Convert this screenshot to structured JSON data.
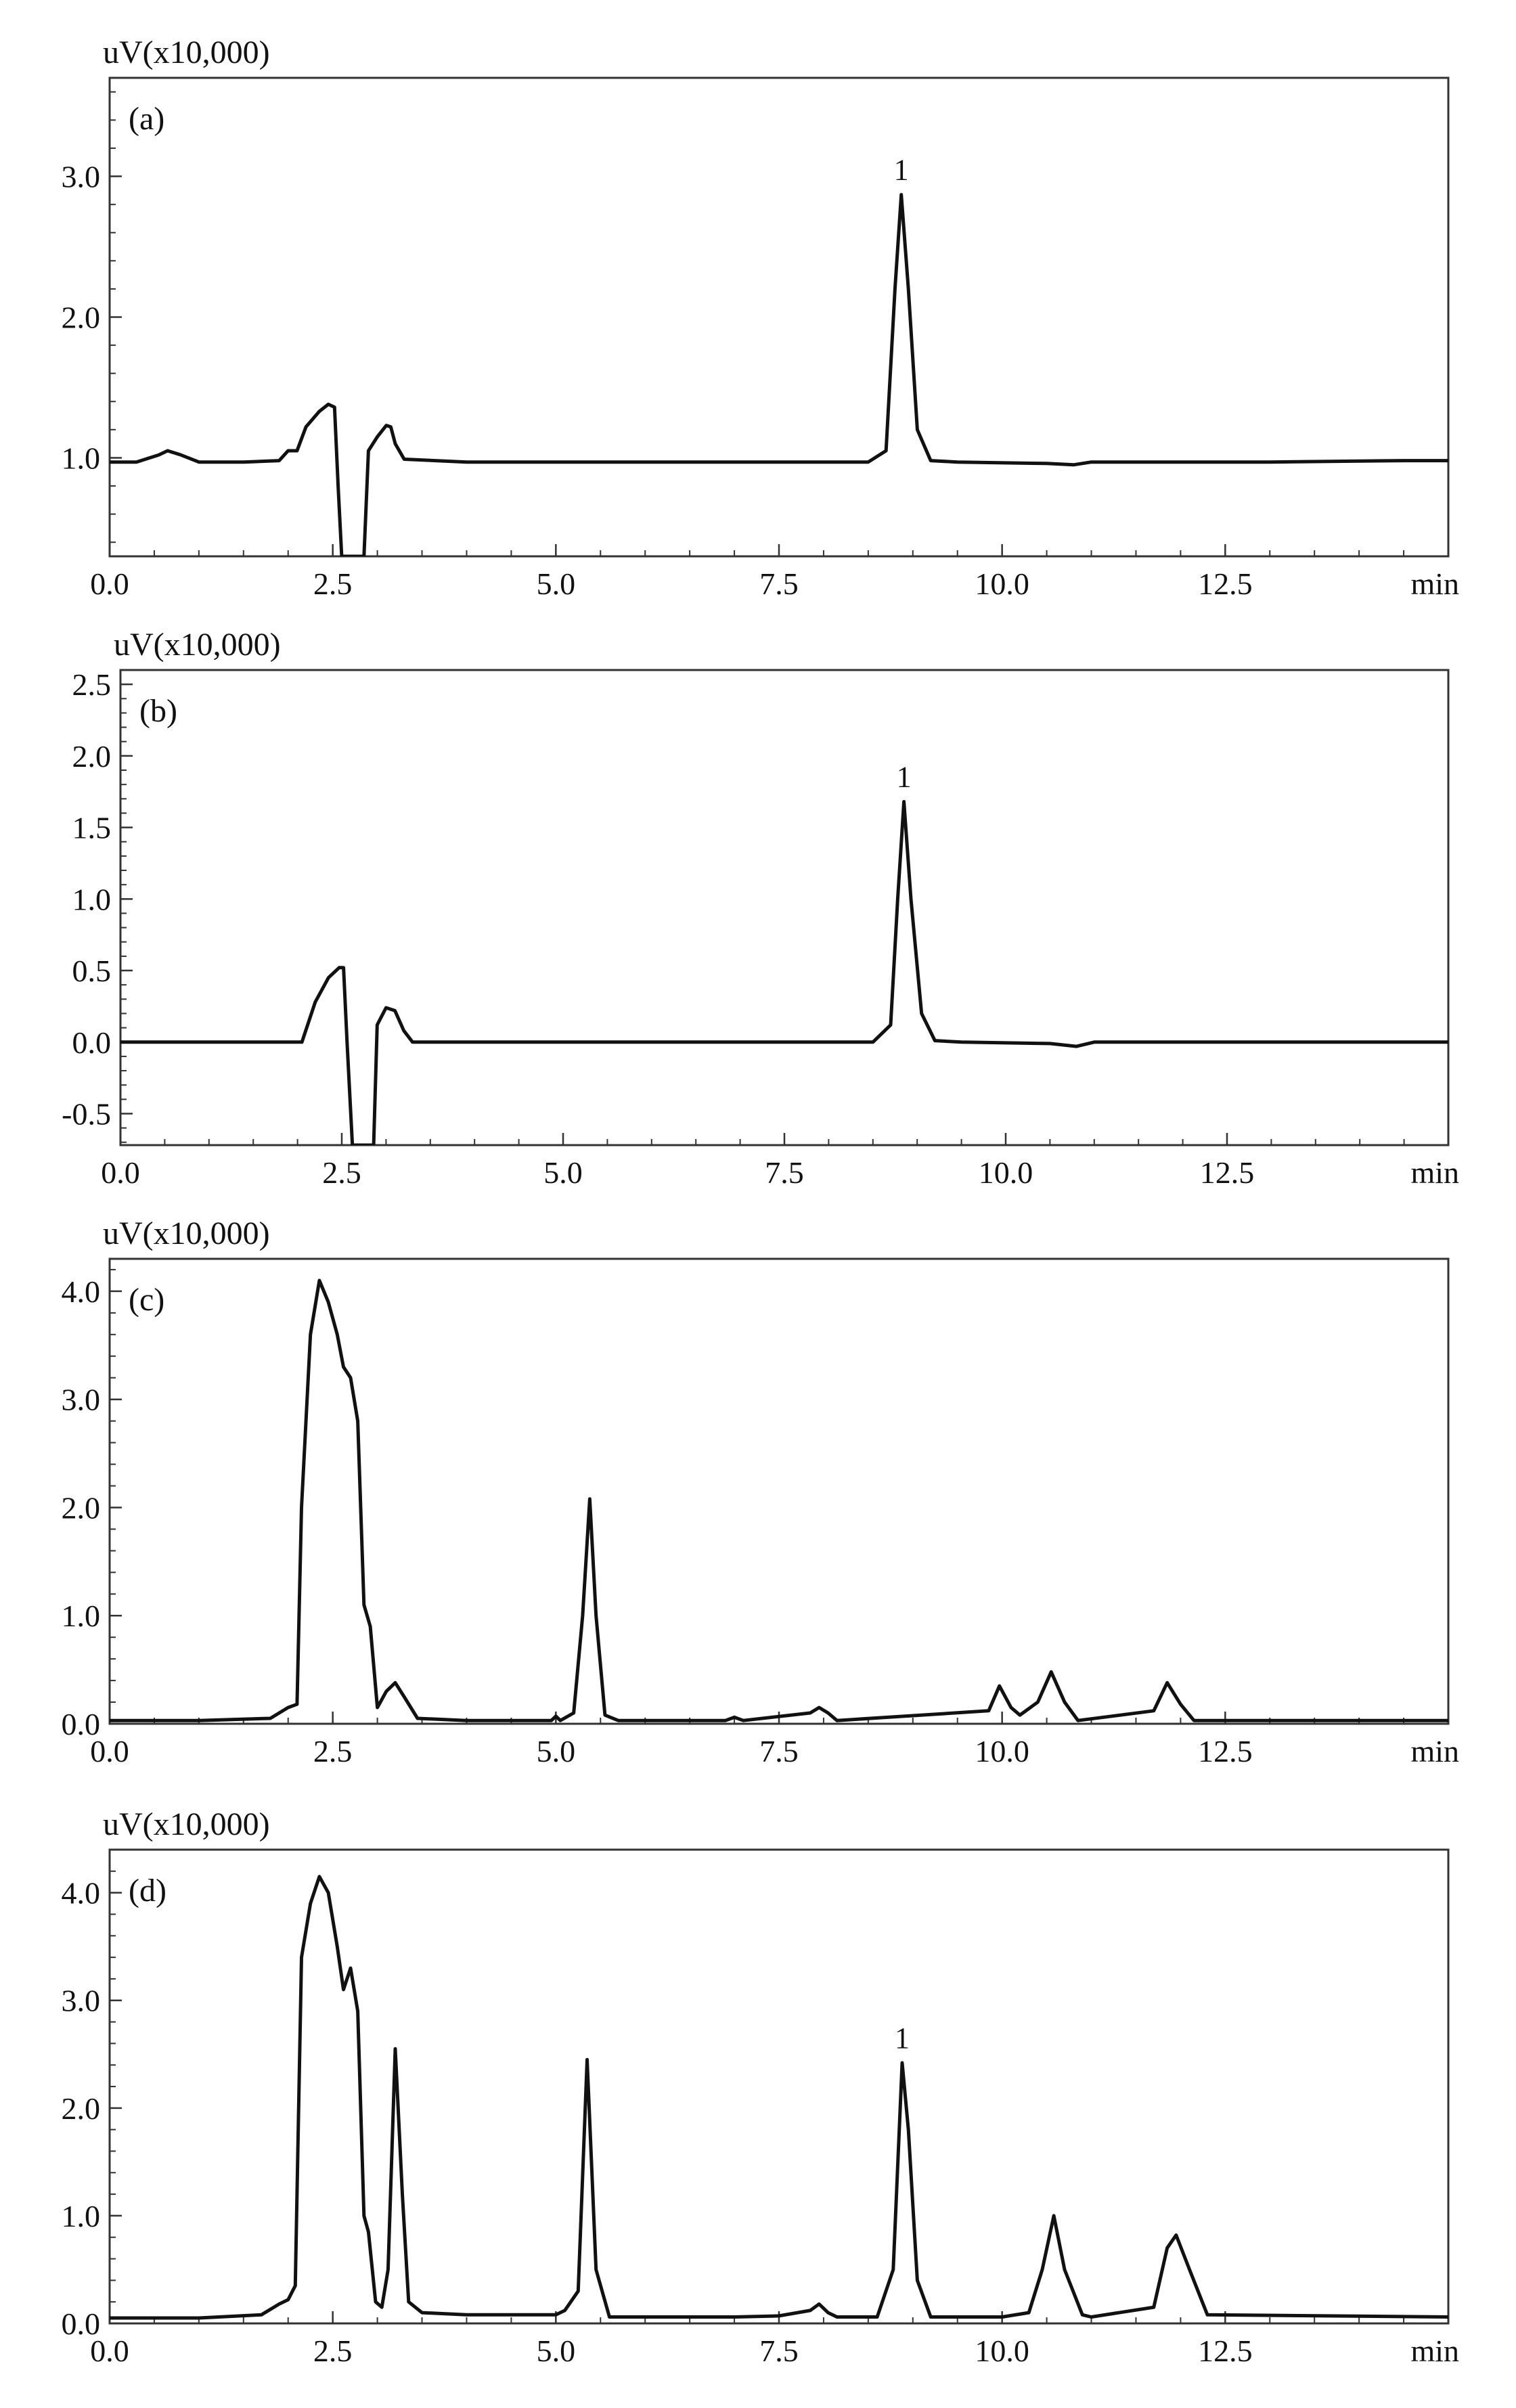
{
  "colors": {
    "trace": "#111111",
    "axis": "#333333",
    "background": "#ffffff"
  },
  "chart_data": [
    {
      "type": "line",
      "panel_label": "(a)",
      "ylabel": "uV(x10,000)",
      "xlabel": "min",
      "xlim": [
        0,
        15
      ],
      "ylim": [
        0.3,
        3.7
      ],
      "xticks": [
        0,
        2.5,
        5,
        7.5,
        10,
        12.5
      ],
      "xtick_labels": [
        "0.0",
        "2.5",
        "5.0",
        "7.5",
        "10.0",
        "12.5"
      ],
      "yticks": [
        1,
        2,
        3
      ],
      "ytick_labels": [
        "1.0",
        "2.0",
        "3.0"
      ],
      "grid": false,
      "baseline": 0.97,
      "x": [
        0.0,
        0.3,
        0.55,
        0.65,
        0.8,
        1.0,
        1.5,
        1.9,
        2.0,
        2.1,
        2.2,
        2.35,
        2.45,
        2.52,
        2.56,
        2.6,
        2.65,
        2.8,
        2.85,
        2.9,
        3.0,
        3.1,
        3.15,
        3.2,
        3.3,
        4.0,
        5.0,
        8.0,
        8.5,
        8.7,
        8.8,
        8.87,
        8.95,
        9.05,
        9.2,
        9.5,
        10.5,
        10.8,
        11.0,
        13.0,
        14.5,
        15.0
      ],
      "values": [
        0.97,
        0.97,
        1.02,
        1.05,
        1.02,
        0.97,
        0.97,
        0.98,
        1.05,
        1.05,
        1.22,
        1.33,
        1.38,
        1.36,
        0.8,
        0.3,
        0.3,
        0.3,
        0.3,
        1.05,
        1.15,
        1.23,
        1.22,
        1.1,
        0.99,
        0.97,
        0.97,
        0.97,
        0.97,
        1.05,
        2.2,
        2.87,
        2.2,
        1.2,
        0.98,
        0.97,
        0.96,
        0.95,
        0.97,
        0.97,
        0.98,
        0.98
      ],
      "annotations": [
        {
          "text": "1",
          "x": 8.87,
          "y": 2.87
        }
      ]
    },
    {
      "type": "line",
      "panel_label": "(b)",
      "ylabel": "uV(x10,000)",
      "xlabel": "min",
      "xlim": [
        0,
        15
      ],
      "ylim": [
        -0.72,
        2.6
      ],
      "xticks": [
        0,
        2.5,
        5,
        7.5,
        10,
        12.5
      ],
      "xtick_labels": [
        "0.0",
        "2.5",
        "5.0",
        "7.5",
        "10.0",
        "12.5"
      ],
      "yticks": [
        -0.5,
        0,
        0.5,
        1.0,
        1.5,
        2.0,
        2.5
      ],
      "ytick_labels": [
        "-0.5",
        "0.0",
        "0.5",
        "1.0",
        "1.5",
        "2.0",
        "2.5"
      ],
      "grid": false,
      "baseline": 0.0,
      "x": [
        0.0,
        1.5,
        2.05,
        2.2,
        2.35,
        2.47,
        2.52,
        2.56,
        2.62,
        2.7,
        2.8,
        2.86,
        2.9,
        3.0,
        3.1,
        3.2,
        3.3,
        5.0,
        8.0,
        8.5,
        8.7,
        8.78,
        8.85,
        8.93,
        9.05,
        9.2,
        9.5,
        10.5,
        10.8,
        11.0,
        13.0,
        15.0
      ],
      "values": [
        0.0,
        0.0,
        0.0,
        0.28,
        0.45,
        0.52,
        0.52,
        0.0,
        -0.72,
        -0.72,
        -0.72,
        -0.72,
        0.12,
        0.24,
        0.22,
        0.08,
        0.0,
        0.0,
        0.0,
        0.0,
        0.12,
        1.0,
        1.68,
        1.0,
        0.2,
        0.01,
        0.0,
        -0.01,
        -0.03,
        0.0,
        0.0,
        0.0
      ],
      "annotations": [
        {
          "text": "1",
          "x": 8.85,
          "y": 1.68
        }
      ]
    },
    {
      "type": "line",
      "panel_label": "(c)",
      "ylabel": "uV(x10,000)",
      "xlabel": "min",
      "xlim": [
        0,
        15
      ],
      "ylim": [
        0,
        4.3
      ],
      "xticks": [
        0,
        2.5,
        5,
        7.5,
        10,
        12.5
      ],
      "xtick_labels": [
        "0.0",
        "2.5",
        "5.0",
        "7.5",
        "10.0",
        "12.5"
      ],
      "yticks": [
        0,
        1,
        2,
        3,
        4
      ],
      "ytick_labels": [
        "0.0",
        "1.0",
        "2.0",
        "3.0",
        "4.0"
      ],
      "grid": false,
      "baseline": 0.03,
      "x": [
        0.0,
        1.0,
        1.8,
        2.0,
        2.1,
        2.15,
        2.25,
        2.35,
        2.45,
        2.55,
        2.62,
        2.7,
        2.78,
        2.85,
        2.92,
        3.0,
        3.1,
        3.2,
        3.3,
        3.45,
        4.0,
        4.95,
        5.0,
        5.05,
        5.2,
        5.3,
        5.38,
        5.45,
        5.55,
        5.7,
        6.9,
        7.0,
        7.1,
        7.85,
        7.95,
        8.05,
        8.15,
        9.85,
        9.97,
        10.1,
        10.2,
        10.4,
        10.55,
        10.7,
        10.85,
        11.7,
        11.85,
        12.0,
        12.15,
        15.0
      ],
      "values": [
        0.03,
        0.03,
        0.05,
        0.15,
        0.18,
        2.0,
        3.6,
        4.1,
        3.9,
        3.6,
        3.3,
        3.2,
        2.8,
        1.1,
        0.9,
        0.15,
        0.3,
        0.38,
        0.25,
        0.05,
        0.03,
        0.03,
        0.07,
        0.03,
        0.1,
        1.0,
        2.08,
        1.0,
        0.08,
        0.03,
        0.03,
        0.06,
        0.03,
        0.1,
        0.15,
        0.1,
        0.03,
        0.12,
        0.35,
        0.15,
        0.08,
        0.2,
        0.48,
        0.2,
        0.03,
        0.12,
        0.38,
        0.18,
        0.03,
        0.03
      ]
    },
    {
      "type": "line",
      "panel_label": "(d)",
      "ylabel": "uV(x10,000)",
      "xlabel": "min",
      "xlim": [
        0,
        15
      ],
      "ylim": [
        0,
        4.4
      ],
      "xticks": [
        0,
        2.5,
        5,
        7.5,
        10,
        12.5
      ],
      "xtick_labels": [
        "0.0",
        "2.5",
        "5.0",
        "7.5",
        "10.0",
        "12.5"
      ],
      "yticks": [
        0,
        1,
        2,
        3,
        4
      ],
      "ytick_labels": [
        "0.0",
        "1.0",
        "2.0",
        "3.0",
        "4.0"
      ],
      "grid": false,
      "baseline": 0.05,
      "x": [
        0.0,
        1.0,
        1.7,
        1.9,
        2.0,
        2.08,
        2.15,
        2.25,
        2.35,
        2.45,
        2.55,
        2.62,
        2.7,
        2.78,
        2.85,
        2.9,
        2.98,
        3.05,
        3.12,
        3.2,
        3.28,
        3.35,
        3.5,
        4.0,
        5.0,
        5.1,
        5.25,
        5.35,
        5.45,
        5.6,
        7.0,
        7.5,
        7.85,
        7.95,
        8.05,
        8.15,
        8.6,
        8.78,
        8.88,
        8.95,
        9.05,
        9.2,
        9.5,
        10.0,
        10.3,
        10.45,
        10.58,
        10.7,
        10.9,
        11.0,
        11.7,
        11.85,
        11.95,
        12.1,
        12.3,
        15.0
      ],
      "values": [
        0.05,
        0.05,
        0.08,
        0.18,
        0.22,
        0.35,
        3.4,
        3.9,
        4.15,
        4.0,
        3.5,
        3.1,
        3.3,
        2.9,
        1.0,
        0.85,
        0.2,
        0.15,
        0.5,
        2.55,
        1.2,
        0.2,
        0.1,
        0.08,
        0.08,
        0.12,
        0.3,
        2.45,
        0.5,
        0.06,
        0.06,
        0.07,
        0.12,
        0.18,
        0.1,
        0.06,
        0.06,
        0.5,
        2.42,
        1.8,
        0.4,
        0.06,
        0.06,
        0.06,
        0.1,
        0.5,
        1.0,
        0.5,
        0.08,
        0.06,
        0.15,
        0.7,
        0.82,
        0.5,
        0.08,
        0.06
      ],
      "annotations": [
        {
          "text": "1",
          "x": 8.88,
          "y": 2.42
        }
      ]
    }
  ]
}
